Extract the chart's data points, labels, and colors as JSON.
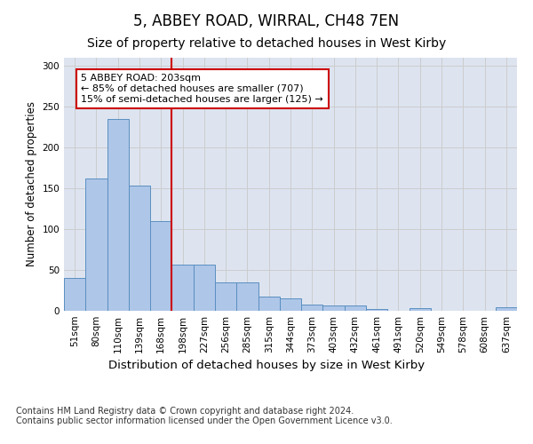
{
  "title": "5, ABBEY ROAD, WIRRAL, CH48 7EN",
  "subtitle": "Size of property relative to detached houses in West Kirby",
  "xlabel": "Distribution of detached houses by size in West Kirby",
  "ylabel": "Number of detached properties",
  "categories": [
    "51sqm",
    "80sqm",
    "110sqm",
    "139sqm",
    "168sqm",
    "198sqm",
    "227sqm",
    "256sqm",
    "285sqm",
    "315sqm",
    "344sqm",
    "373sqm",
    "403sqm",
    "432sqm",
    "461sqm",
    "491sqm",
    "520sqm",
    "549sqm",
    "578sqm",
    "608sqm",
    "637sqm"
  ],
  "values": [
    40,
    162,
    235,
    153,
    110,
    57,
    57,
    35,
    35,
    17,
    15,
    8,
    6,
    6,
    2,
    0,
    3,
    0,
    0,
    0,
    4
  ],
  "bar_color": "#aec6e8",
  "bar_edge_color": "#5a8fc0",
  "highlight_line_color": "#cc0000",
  "annotation_text": "5 ABBEY ROAD: 203sqm\n← 85% of detached houses are smaller (707)\n15% of semi-detached houses are larger (125) →",
  "annotation_box_color": "#ffffff",
  "annotation_box_edge": "#cc0000",
  "ylim": [
    0,
    310
  ],
  "yticks": [
    0,
    50,
    100,
    150,
    200,
    250,
    300
  ],
  "grid_color": "#cccccc",
  "background_color": "#dde4f0",
  "footer": "Contains HM Land Registry data © Crown copyright and database right 2024.\nContains public sector information licensed under the Open Government Licence v3.0.",
  "title_fontsize": 12,
  "subtitle_fontsize": 10,
  "xlabel_fontsize": 9.5,
  "ylabel_fontsize": 8.5,
  "tick_fontsize": 7.5,
  "annotation_fontsize": 8,
  "footer_fontsize": 7
}
